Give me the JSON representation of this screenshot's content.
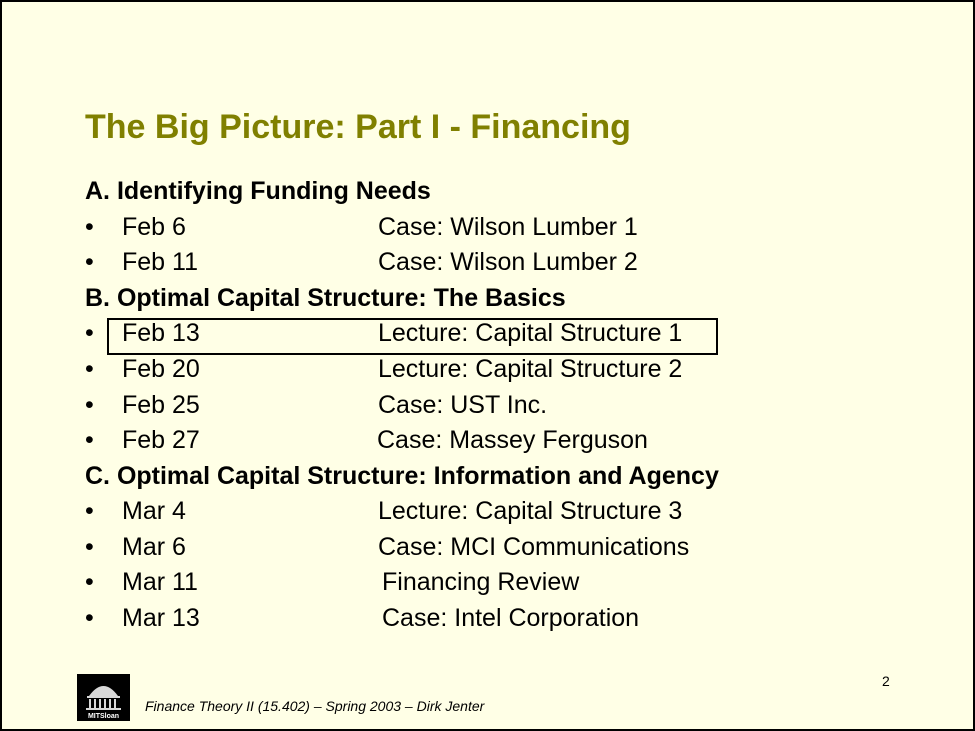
{
  "slide": {
    "title": "The Big Picture: Part I - Financing",
    "page_number": "2",
    "footer": "Finance Theory II (15.402) – Spring 2003 – Dirk Jenter",
    "logo_text": "MITSloan"
  },
  "sections": [
    {
      "heading": "A. Identifying Funding Needs",
      "items": [
        {
          "bullet": "•",
          "date": "Feb 6",
          "desc": "Case: Wilson Lumber 1"
        },
        {
          "bullet": "•",
          "date": "Feb 11",
          "desc": "Case: Wilson Lumber 2"
        }
      ]
    },
    {
      "heading": "B. Optimal Capital Structure: The Basics",
      "items": [
        {
          "bullet": "•",
          "date": "Feb 13",
          "desc": "Lecture: Capital Structure 1"
        },
        {
          "bullet": "•",
          "date": "Feb 20",
          "desc": "Lecture: Capital Structure 2"
        },
        {
          "bullet": "•",
          "date": "Feb 25",
          "desc": "Case: UST Inc."
        },
        {
          "bullet": "•",
          "date": "Feb 27",
          "desc": "Case: Massey Ferguson"
        }
      ]
    },
    {
      "heading": "C. Optimal Capital Structure: Information and Agency",
      "items": [
        {
          "bullet": "•",
          "date": "Mar 4",
          "desc": "Lecture: Capital Structure 3"
        },
        {
          "bullet": "•",
          "date": "Mar 6",
          "desc": "Case: MCI Communications"
        },
        {
          "bullet": "•",
          "date": "Mar 11",
          "desc": "Financing Review"
        },
        {
          "bullet": "•",
          "date": "Mar 13",
          "desc": "Case: Intel Corporation"
        }
      ]
    }
  ]
}
